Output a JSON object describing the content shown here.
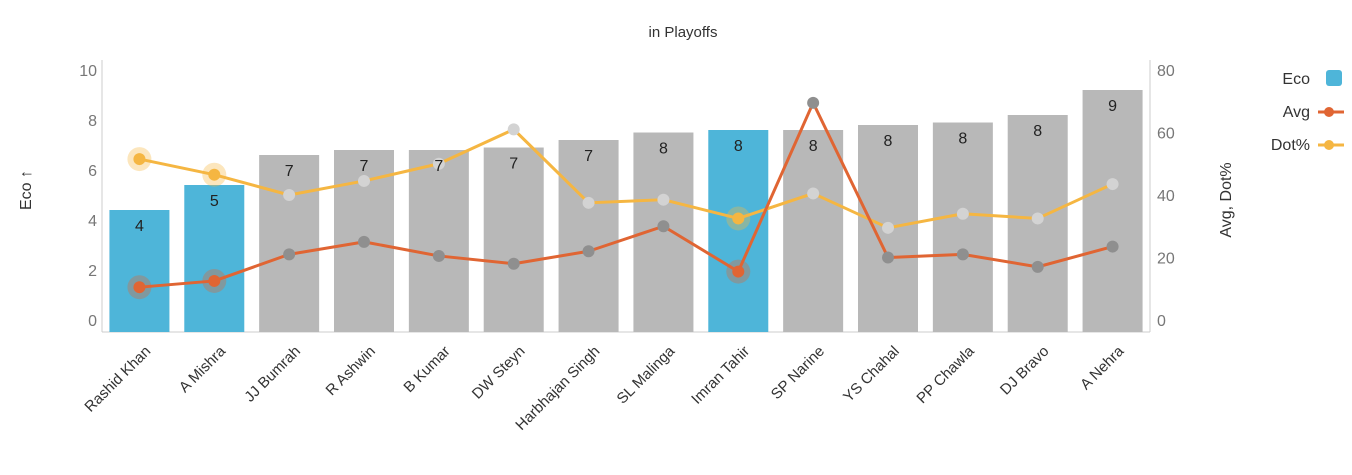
{
  "chart_data": {
    "type": "bar",
    "title": "in Playoffs",
    "categories": [
      "Rashid Khan",
      "A Mishra",
      "JJ Bumrah",
      "R Ashwin",
      "B Kumar",
      "DW Steyn",
      "Harbhajan Singh",
      "SL Malinga",
      "Imran Tahir",
      "SP Narine",
      "YS Chahal",
      "PP Chawla",
      "DJ Bravo",
      "A Nehra"
    ],
    "series": [
      {
        "name": "Eco",
        "type": "bar",
        "axis": "left",
        "values": [
          4.4,
          5.4,
          6.6,
          6.8,
          6.8,
          6.9,
          7.2,
          7.5,
          7.6,
          7.6,
          7.8,
          7.9,
          8.2,
          9.2
        ]
      },
      {
        "name": "Avg",
        "type": "line",
        "axis": "right",
        "values": [
          10.5,
          12.5,
          21,
          25,
          20.5,
          18,
          22,
          30,
          15.5,
          69.5,
          20,
          21,
          17,
          23.5
        ]
      },
      {
        "name": "Dot%",
        "type": "line",
        "axis": "right",
        "values": [
          51.5,
          46.5,
          40,
          44.5,
          50,
          61,
          37.5,
          38.5,
          32.5,
          40.5,
          29.5,
          34,
          32.5,
          43.5
        ]
      }
    ],
    "data_labels": [
      "4",
      "5",
      "7",
      "7",
      "7",
      "7",
      "7",
      "8",
      "8",
      "8",
      "8",
      "8",
      "8",
      "9"
    ],
    "highlighted": [
      "Rashid Khan",
      "A Mishra",
      "Imran Tahir"
    ],
    "ylabel": "Eco ↑",
    "y2label": "Avg, Dot%",
    "ylim": [
      0,
      10
    ],
    "y2lim": [
      0,
      80
    ],
    "yticks": [
      "0",
      "2",
      "4",
      "6",
      "8",
      "10"
    ],
    "y2ticks": [
      "0",
      "20",
      "40",
      "60",
      "80"
    ],
    "legend": {
      "position": "top-right",
      "entries": [
        "Eco",
        "Avg",
        "Dot%"
      ]
    },
    "colors": {
      "highlight_bar": "#4eb5d9",
      "bar": "#b8b8b8",
      "avg": "#e06533",
      "dot": "#f5b642",
      "marker_muted": "#8f8f8f",
      "marker_muted_dot": "#d3d3d3"
    }
  }
}
